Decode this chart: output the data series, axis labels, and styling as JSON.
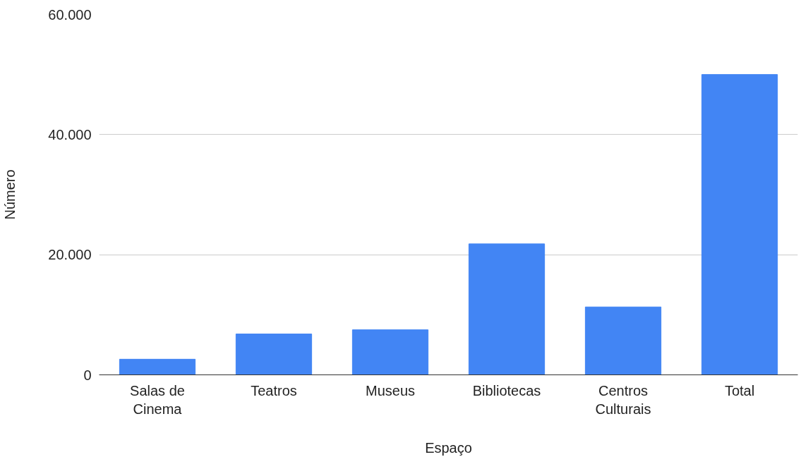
{
  "chart_data": {
    "type": "bar",
    "xlabel": "Espaço",
    "ylabel": "Número",
    "categories": [
      "Salas de Cinema",
      "Teatros",
      "Museus",
      "Bibliotecas",
      "Centros Culturais",
      "Total"
    ],
    "values": [
      2600,
      6800,
      7500,
      21800,
      11300,
      50000
    ],
    "color": "#4285f4",
    "ylim": [
      0,
      60000
    ],
    "yticks": [
      {
        "value": 0,
        "label": "0"
      },
      {
        "value": 20000,
        "label": "20.000"
      },
      {
        "value": 40000,
        "label": "40.000"
      },
      {
        "value": 60000,
        "label": "60.000"
      }
    ],
    "grid": "y"
  }
}
